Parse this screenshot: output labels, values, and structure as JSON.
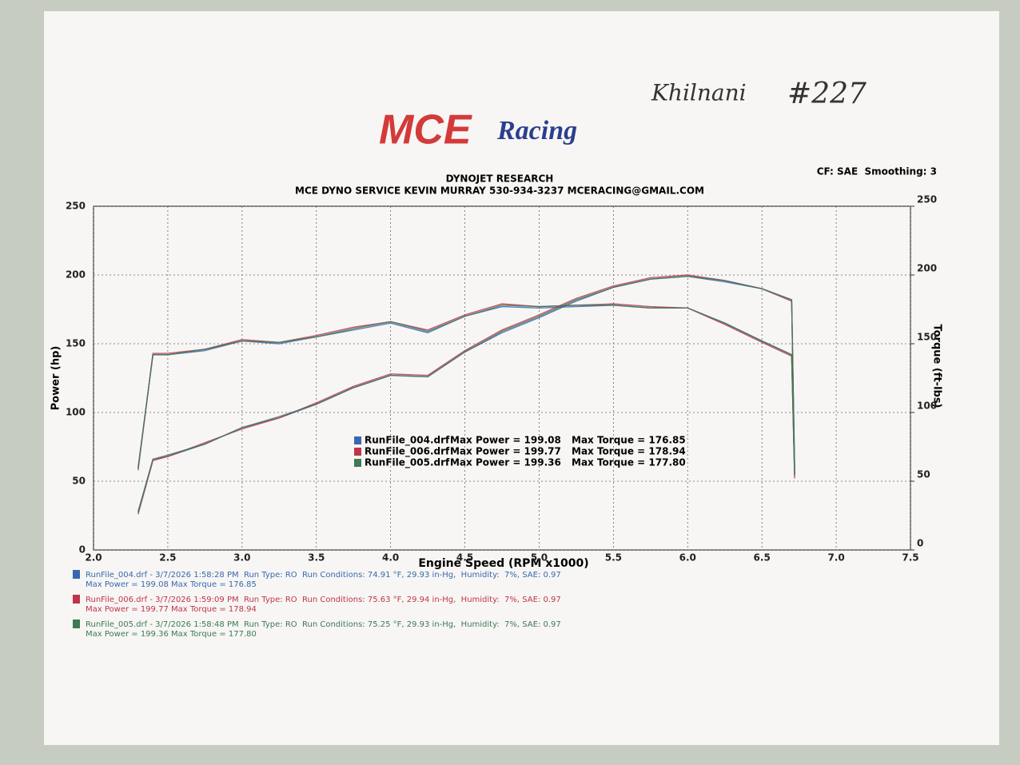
{
  "handwriting": {
    "name": "Khilnani",
    "number": "#227"
  },
  "logo": {
    "mce": "MCE",
    "racing": "Racing"
  },
  "chart_data": {
    "type": "line",
    "title": "DYNOJET RESEARCH",
    "subtitle": "MCE DYNO SERVICE KEVIN MURRAY 530-934-3237 MCERACING@GMAIL.COM",
    "settings_note": "CF: SAE  Smoothing: 3",
    "x_label": "Engine Speed (RPM x1000)",
    "y_label": "Power (hp)",
    "y2_label": "Torque (ft-lbs)",
    "grid": true,
    "xlim": [
      2,
      7.5
    ],
    "xticks": [
      {
        "value": 2,
        "label": "2.0"
      },
      2.5,
      {
        "value": 3,
        "label": "3.0"
      },
      3.5,
      {
        "value": 4,
        "label": "4.0"
      },
      4.5,
      {
        "value": 5,
        "label": "5.0"
      },
      5.5,
      {
        "value": 6,
        "label": "6.0"
      },
      6.5,
      {
        "value": 7,
        "label": "7.0"
      },
      7.5
    ],
    "ylim": [
      0,
      250
    ],
    "yticks": [
      0,
      50,
      100,
      150,
      200,
      250
    ],
    "y2lim": [
      0,
      250
    ],
    "y2ticks": [
      0,
      50,
      100,
      150,
      200,
      250
    ],
    "x": [
      2.3,
      2.4,
      2.5,
      2.75,
      3.0,
      3.25,
      3.5,
      3.75,
      4.0,
      4.25,
      4.5,
      4.75,
      5.0,
      5.25,
      5.5,
      5.75,
      6.0,
      6.25,
      6.5,
      6.7,
      6.72
    ],
    "runs": [
      {
        "name": "RunFile_004.drf",
        "color": "#3a68b0",
        "power": [
          28,
          66,
          68,
          77,
          89,
          96,
          106,
          118,
          127,
          126,
          144,
          158,
          169,
          181,
          191,
          197,
          199,
          195,
          190,
          182,
          60
        ],
        "torque": [
          60,
          142,
          142,
          145,
          152,
          150,
          155,
          160,
          165,
          158,
          170,
          177,
          176,
          177,
          178,
          176,
          176,
          165,
          152,
          142,
          55
        ],
        "max_power": "Max Power = 199.08",
        "max_torque": "Max Torque = 176.85",
        "details": "RunFile_004.drf - 3/7/2026 1:58:28 PM  Run Type: RO  Run Conditions: 74.91 °F, 29.93 in-Hg,  Humidity:  7%, SAE: 0.97"
      },
      {
        "name": "RunFile_006.drf",
        "color": "#c0344a",
        "power": [
          26,
          65,
          68,
          78,
          88,
          96,
          107,
          119,
          128,
          127,
          145,
          160,
          171,
          183,
          192,
          198,
          200,
          196,
          190,
          181,
          55
        ],
        "torque": [
          58,
          143,
          143,
          146,
          153,
          151,
          156,
          162,
          166,
          160,
          171,
          179,
          177,
          178,
          179,
          177,
          176,
          164,
          151,
          141,
          52
        ],
        "max_power": "Max Power = 199.77",
        "max_torque": "Max Torque = 178.94",
        "details": "RunFile_006.drf - 3/7/2026 1:59:09 PM  Run Type: RO  Run Conditions: 75.63 °F, 29.94 in-Hg,  Humidity:  7%, SAE: 0.97"
      },
      {
        "name": "RunFile_005.drf",
        "color": "#3d7a55",
        "power": [
          27,
          66,
          69,
          77,
          89,
          97,
          106,
          118,
          127,
          126,
          144,
          159,
          170,
          182,
          191,
          197,
          199,
          196,
          190,
          182,
          58
        ],
        "torque": [
          59,
          142,
          142,
          146,
          152,
          151,
          155,
          161,
          166,
          159,
          170,
          178,
          177,
          178,
          178,
          176,
          176,
          165,
          152,
          142,
          54
        ],
        "max_power": "Max Power = 199.36",
        "max_torque": "Max Torque = 177.80",
        "details": "RunFile_005.drf - 3/7/2026 1:58:48 PM  Run Type: RO  Run Conditions: 75.25 °F, 29.93 in-Hg,  Humidity:  7%, SAE: 0.97"
      }
    ]
  }
}
